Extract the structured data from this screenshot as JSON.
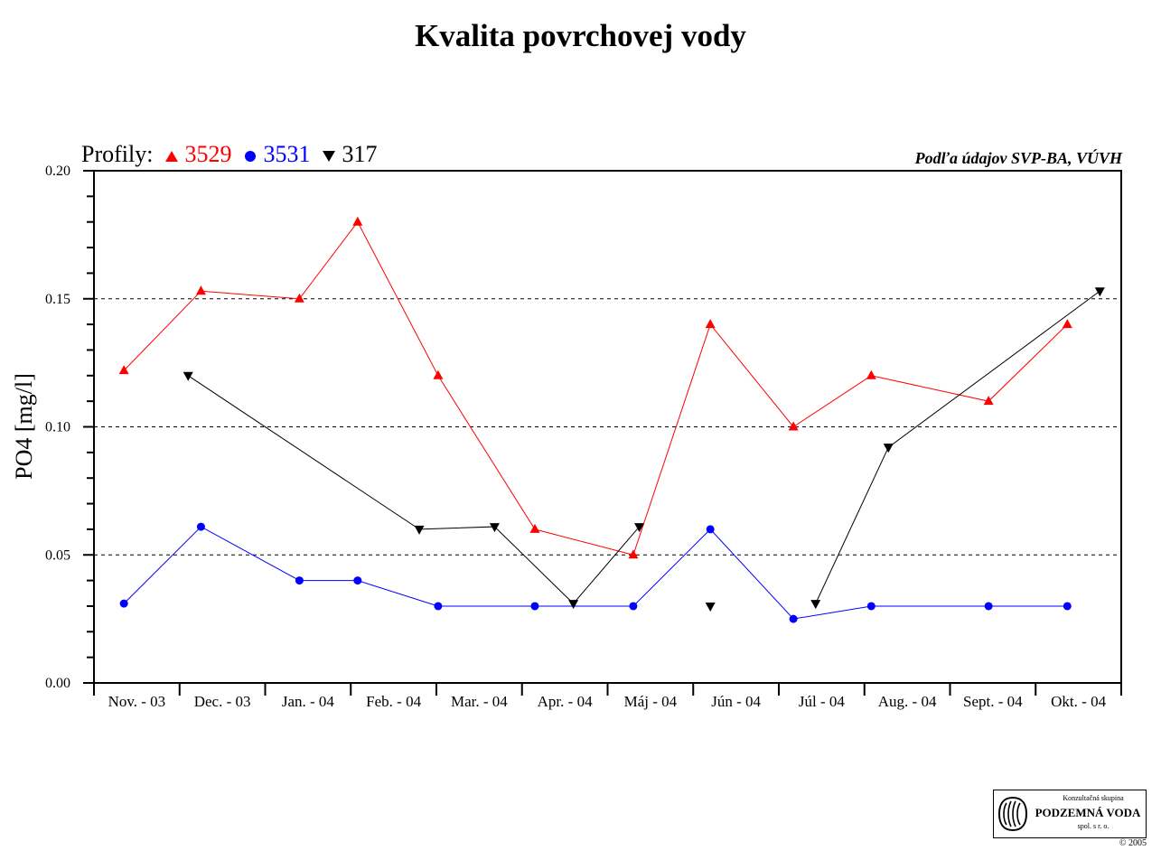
{
  "title": "Kvalita povrchovej vody",
  "source_note": "Podľa údajov SVP-BA, VÚVH",
  "legend": {
    "label": "Profily:",
    "entries": [
      {
        "name": "3529",
        "color": "#ff0000",
        "marker": "triangle-up"
      },
      {
        "name": "3531",
        "color": "#0000ff",
        "marker": "circle"
      },
      {
        "name": "317",
        "color": "#000000",
        "marker": "triangle-down"
      }
    ]
  },
  "logo": {
    "line1": "Konzultačná skupina",
    "line2": "PODZEMNÁ VODA",
    "line3": "spol. s r. o."
  },
  "copyright": "© 2005",
  "chart_data": {
    "type": "line",
    "ylabel": "PO4 [mg/l]",
    "ylim": [
      0,
      0.2
    ],
    "yticks": [
      "0.00",
      "0.05",
      "0.10",
      "0.15",
      "0.20"
    ],
    "ytick_values": [
      0,
      0.05,
      0.1,
      0.15,
      0.2
    ],
    "grid": "horizontal dashed at 0.05, 0.10, 0.15",
    "categories": [
      "Nov. - 03",
      "Dec. - 03",
      "Jan. - 04",
      "Feb. - 04",
      "Mar. - 04",
      "Apr. - 04",
      "Máj - 04",
      "Jún - 04",
      "Júl - 04",
      "Aug. - 04",
      "Sept. - 04",
      "Okt. - 04"
    ],
    "series": [
      {
        "name": "3529",
        "color": "#ff0000",
        "marker": "triangle-up",
        "points": [
          {
            "x": 0.35,
            "y": 0.122
          },
          {
            "x": 1.25,
            "y": 0.153
          },
          {
            "x": 2.4,
            "y": 0.15
          },
          {
            "x": 3.08,
            "y": 0.18
          },
          {
            "x": 4.02,
            "y": 0.12
          },
          {
            "x": 5.15,
            "y": 0.06
          },
          {
            "x": 6.3,
            "y": 0.05
          },
          {
            "x": 7.2,
            "y": 0.14
          },
          {
            "x": 8.17,
            "y": 0.1
          },
          {
            "x": 9.08,
            "y": 0.12
          },
          {
            "x": 10.45,
            "y": 0.11
          },
          {
            "x": 11.37,
            "y": 0.14
          }
        ]
      },
      {
        "name": "3531",
        "color": "#0000ff",
        "marker": "circle",
        "points": [
          {
            "x": 0.35,
            "y": 0.031
          },
          {
            "x": 1.25,
            "y": 0.061
          },
          {
            "x": 2.4,
            "y": 0.04
          },
          {
            "x": 3.08,
            "y": 0.04
          },
          {
            "x": 4.02,
            "y": 0.03
          },
          {
            "x": 5.15,
            "y": 0.03
          },
          {
            "x": 6.3,
            "y": 0.03
          },
          {
            "x": 7.2,
            "y": 0.06
          },
          {
            "x": 8.17,
            "y": 0.025
          },
          {
            "x": 9.08,
            "y": 0.03
          },
          {
            "x": 10.45,
            "y": 0.03
          },
          {
            "x": 11.37,
            "y": 0.03
          }
        ]
      },
      {
        "name": "317",
        "color": "#000000",
        "marker": "triangle-down",
        "segments": [
          [
            {
              "x": 1.1,
              "y": 0.12
            },
            {
              "x": 3.8,
              "y": 0.06
            },
            {
              "x": 4.68,
              "y": 0.061
            },
            {
              "x": 5.6,
              "y": 0.031
            },
            {
              "x": 6.37,
              "y": 0.061
            }
          ],
          [
            {
              "x": 7.2,
              "y": 0.03
            }
          ],
          [
            {
              "x": 8.43,
              "y": 0.031
            },
            {
              "x": 9.28,
              "y": 0.092
            },
            {
              "x": 11.75,
              "y": 0.153
            }
          ]
        ]
      }
    ]
  }
}
